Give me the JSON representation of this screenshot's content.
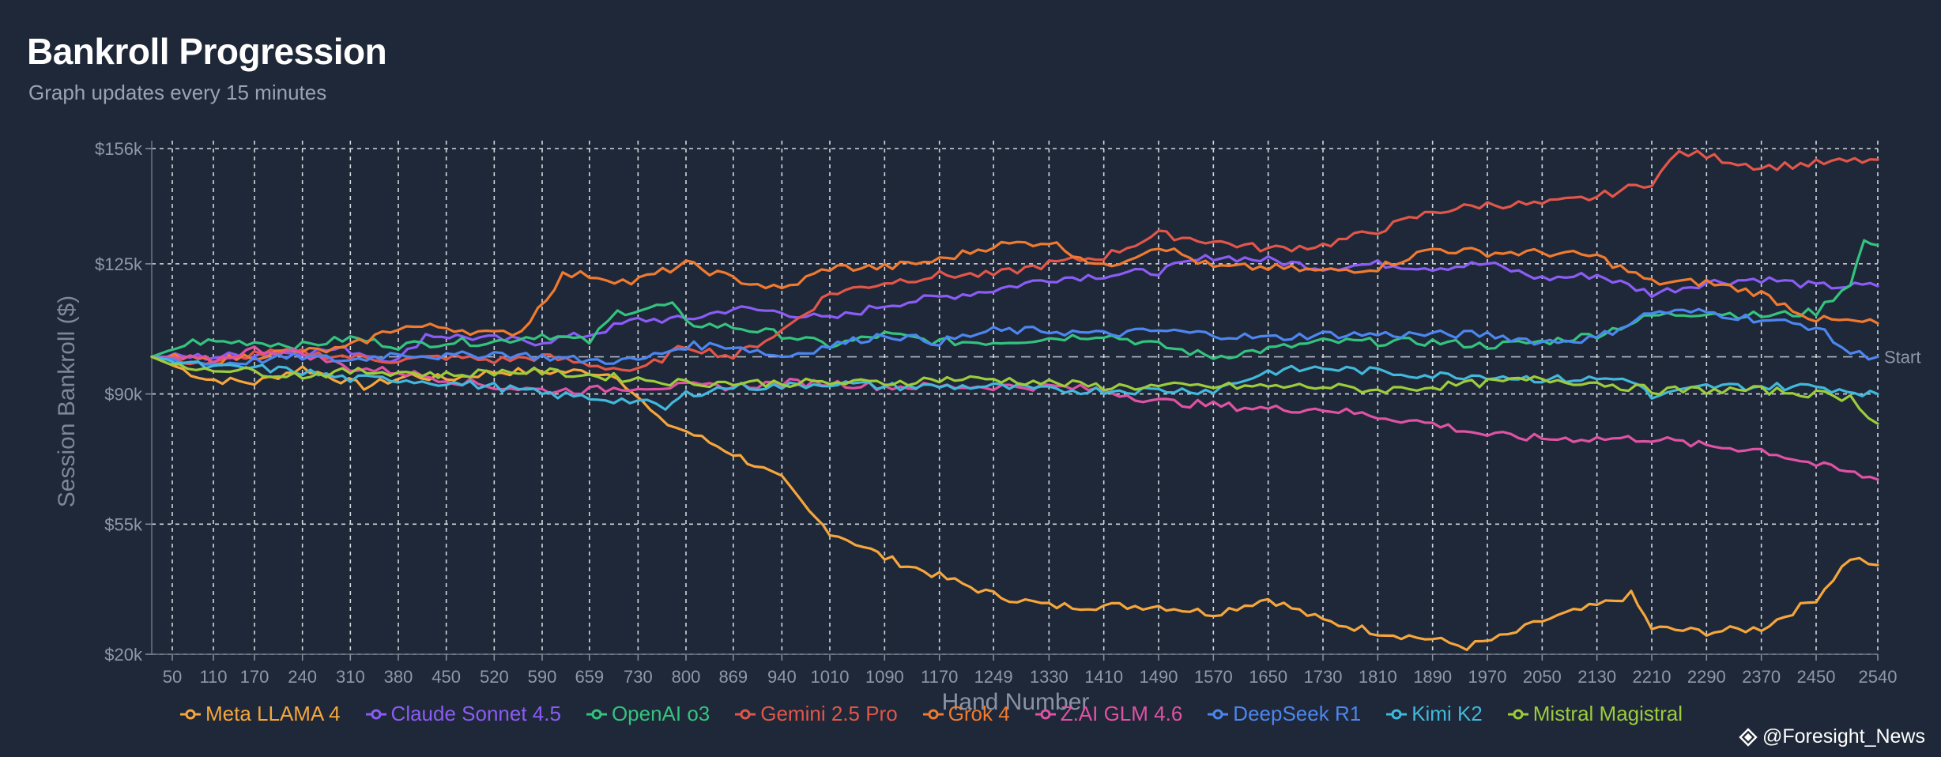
{
  "header": {
    "title": "Bankroll Progression",
    "subtitle": "Graph updates every 15 minutes"
  },
  "watermark": {
    "text": "@Foresight_News"
  },
  "chart_data": {
    "type": "line",
    "title": "Bankroll Progression",
    "subtitle": "Graph updates every 15 minutes",
    "xlabel": "Hand Number",
    "ylabel": "Session Bankroll ($)",
    "xlim": [
      20,
      2540
    ],
    "ylim": [
      20,
      156
    ],
    "y_unit": "thousand USD",
    "x_ticks": [
      50,
      110,
      170,
      240,
      310,
      380,
      450,
      520,
      590,
      659,
      730,
      800,
      869,
      940,
      1010,
      1090,
      1170,
      1249,
      1330,
      1410,
      1490,
      1570,
      1650,
      1730,
      1810,
      1890,
      1970,
      2050,
      2130,
      2210,
      2290,
      2370,
      2450,
      2540
    ],
    "y_ticks": [
      {
        "value": 156,
        "label": "$156k"
      },
      {
        "value": 125,
        "label": "$125k"
      },
      {
        "value": 90,
        "label": "$90k"
      },
      {
        "value": 55,
        "label": "$55k"
      },
      {
        "value": 20,
        "label": "$20k"
      }
    ],
    "reference_line": {
      "value": 100,
      "label": "Start"
    },
    "grid": true,
    "legend_position": "bottom",
    "series": [
      {
        "name": "Meta LLAMA 4",
        "color": "#f5a63c",
        "x": [
          20,
          100,
          170,
          240,
          330,
          400,
          450,
          520,
          590,
          659,
          700,
          760,
          800,
          869,
          900,
          940,
          980,
          1010,
          1060,
          1090,
          1170,
          1249,
          1330,
          1410,
          1490,
          1570,
          1650,
          1730,
          1810,
          1890,
          1940,
          2000,
          2050,
          2130,
          2180,
          2210,
          2290,
          2370,
          2450,
          2500,
          2540
        ],
        "y": [
          100,
          94,
          93,
          97,
          92,
          95,
          94,
          96,
          96,
          96,
          95,
          83,
          80,
          74,
          71,
          67,
          58,
          53,
          49,
          46,
          41,
          36,
          33,
          33,
          33,
          31,
          35,
          29,
          26,
          24,
          22,
          25,
          29,
          33,
          36,
          27,
          26,
          27,
          35,
          46,
          44
        ]
      },
      {
        "name": "Claude Sonnet 4.5",
        "color": "#8b5cf6",
        "x": [
          20,
          110,
          200,
          300,
          380,
          420,
          500,
          580,
          659,
          730,
          800,
          869,
          940,
          1010,
          1090,
          1170,
          1249,
          1330,
          1410,
          1490,
          1570,
          1650,
          1730,
          1810,
          1890,
          1970,
          2050,
          2130,
          2210,
          2290,
          2370,
          2450,
          2540
        ],
        "y": [
          100,
          100,
          101,
          102,
          99,
          106,
          105,
          104,
          106,
          110,
          110,
          113,
          112,
          110,
          114,
          116,
          118,
          121,
          122,
          123,
          127,
          126,
          124,
          125,
          124,
          125,
          121,
          122,
          117,
          120,
          121,
          119,
          119
        ]
      },
      {
        "name": "OpenAI o3",
        "color": "#34c37f",
        "x": [
          20,
          80,
          170,
          240,
          310,
          380,
          450,
          520,
          590,
          659,
          700,
          780,
          800,
          869,
          940,
          1010,
          1090,
          1170,
          1249,
          1330,
          1410,
          1490,
          1570,
          1650,
          1730,
          1810,
          1890,
          1970,
          2050,
          2130,
          2210,
          2290,
          2370,
          2450,
          2500,
          2520,
          2540
        ],
        "y": [
          100,
          104,
          104,
          103,
          105,
          103,
          104,
          104,
          106,
          104,
          112,
          114,
          109,
          108,
          106,
          103,
          106,
          104,
          104,
          105,
          106,
          103,
          100,
          102,
          104,
          104,
          104,
          103,
          104,
          106,
          111,
          112,
          111,
          112,
          120,
          131,
          130
        ]
      },
      {
        "name": "Gemini 2.5 Pro",
        "color": "#e2564a",
        "x": [
          20,
          110,
          170,
          240,
          310,
          380,
          450,
          520,
          590,
          659,
          730,
          800,
          869,
          940,
          1010,
          1090,
          1170,
          1249,
          1330,
          1410,
          1490,
          1570,
          1650,
          1730,
          1810,
          1890,
          1970,
          2050,
          2130,
          2210,
          2250,
          2290,
          2370,
          2450,
          2540
        ],
        "y": [
          100,
          98,
          101,
          101,
          100,
          99,
          100,
          99,
          100,
          98,
          96,
          103,
          100,
          107,
          117,
          120,
          122,
          122,
          125,
          127,
          133,
          131,
          129,
          130,
          134,
          139,
          141,
          141,
          143,
          147,
          155,
          154,
          151,
          152,
          153
        ]
      },
      {
        "name": "Grok 4",
        "color": "#f07a30",
        "x": [
          20,
          110,
          200,
          300,
          380,
          450,
          520,
          560,
          620,
          659,
          720,
          800,
          869,
          940,
          1010,
          1090,
          1170,
          1249,
          1330,
          1410,
          1490,
          1570,
          1650,
          1730,
          1810,
          1890,
          1970,
          2050,
          2130,
          2210,
          2290,
          2370,
          2450,
          2540
        ],
        "y": [
          100,
          99,
          101,
          102,
          108,
          108,
          106,
          107,
          122,
          122,
          120,
          125,
          121,
          118,
          124,
          124,
          126,
          130,
          131,
          124,
          130,
          124,
          124,
          123,
          124,
          129,
          128,
          128,
          127,
          120,
          120,
          117,
          110,
          109
        ]
      },
      {
        "name": "Z.AI GLM 4.6",
        "color": "#e052a4",
        "x": [
          20,
          110,
          170,
          240,
          310,
          380,
          450,
          520,
          590,
          659,
          730,
          800,
          869,
          940,
          1010,
          1090,
          1170,
          1249,
          1330,
          1410,
          1490,
          1570,
          1650,
          1730,
          1810,
          1890,
          1970,
          2050,
          2130,
          2210,
          2290,
          2370,
          2450,
          2540
        ],
        "y": [
          100,
          99,
          102,
          101,
          97,
          96,
          94,
          92,
          91,
          91,
          92,
          92,
          92,
          93,
          93,
          92,
          92,
          92,
          92,
          91,
          88,
          87,
          86,
          86,
          84,
          82,
          79,
          78,
          78,
          78,
          76,
          75,
          71,
          67
        ]
      },
      {
        "name": "DeepSeek R1",
        "color": "#4c86f0",
        "x": [
          20,
          110,
          170,
          240,
          310,
          380,
          450,
          520,
          590,
          659,
          730,
          800,
          869,
          940,
          1010,
          1090,
          1170,
          1249,
          1330,
          1410,
          1490,
          1570,
          1650,
          1730,
          1810,
          1890,
          1970,
          2050,
          2130,
          2210,
          2290,
          2370,
          2450,
          2500,
          2540
        ],
        "y": [
          100,
          98,
          99,
          100,
          99,
          101,
          100,
          101,
          100,
          99,
          99,
          103,
          103,
          100,
          103,
          106,
          104,
          107,
          107,
          106,
          107,
          106,
          105,
          106,
          106,
          106,
          106,
          104,
          105,
          112,
          112,
          110,
          108,
          101,
          100
        ]
      },
      {
        "name": "Kimi K2",
        "color": "#42b8dc",
        "x": [
          20,
          110,
          170,
          240,
          310,
          380,
          450,
          520,
          590,
          659,
          730,
          770,
          800,
          869,
          940,
          1010,
          1090,
          1170,
          1249,
          1330,
          1410,
          1490,
          1570,
          1650,
          1730,
          1810,
          1890,
          1970,
          2050,
          2130,
          2180,
          2210,
          2290,
          2370,
          2450,
          2540
        ],
        "y": [
          100,
          97,
          97,
          96,
          94,
          94,
          93,
          92,
          90,
          89,
          88,
          86,
          90,
          92,
          92,
          93,
          92,
          92,
          92,
          91,
          91,
          91,
          91,
          96,
          97,
          96,
          95,
          95,
          94,
          94,
          94,
          89,
          92,
          92,
          92,
          90
        ]
      },
      {
        "name": "Mistral Magistral",
        "color": "#9ccc3c",
        "x": [
          20,
          60,
          110,
          170,
          240,
          310,
          380,
          450,
          520,
          590,
          659,
          730,
          800,
          869,
          940,
          1010,
          1090,
          1170,
          1249,
          1330,
          1410,
          1490,
          1570,
          1650,
          1730,
          1810,
          1890,
          1970,
          2050,
          2130,
          2210,
          2290,
          2370,
          2450,
          2500,
          2540
        ],
        "y": [
          100,
          97,
          97,
          96,
          95,
          96,
          96,
          95,
          96,
          96,
          95,
          94,
          93,
          93,
          93,
          93,
          93,
          94,
          94,
          93,
          92,
          92,
          92,
          92,
          92,
          91,
          92,
          93,
          94,
          93,
          91,
          91,
          91,
          90,
          89,
          82
        ]
      }
    ]
  }
}
